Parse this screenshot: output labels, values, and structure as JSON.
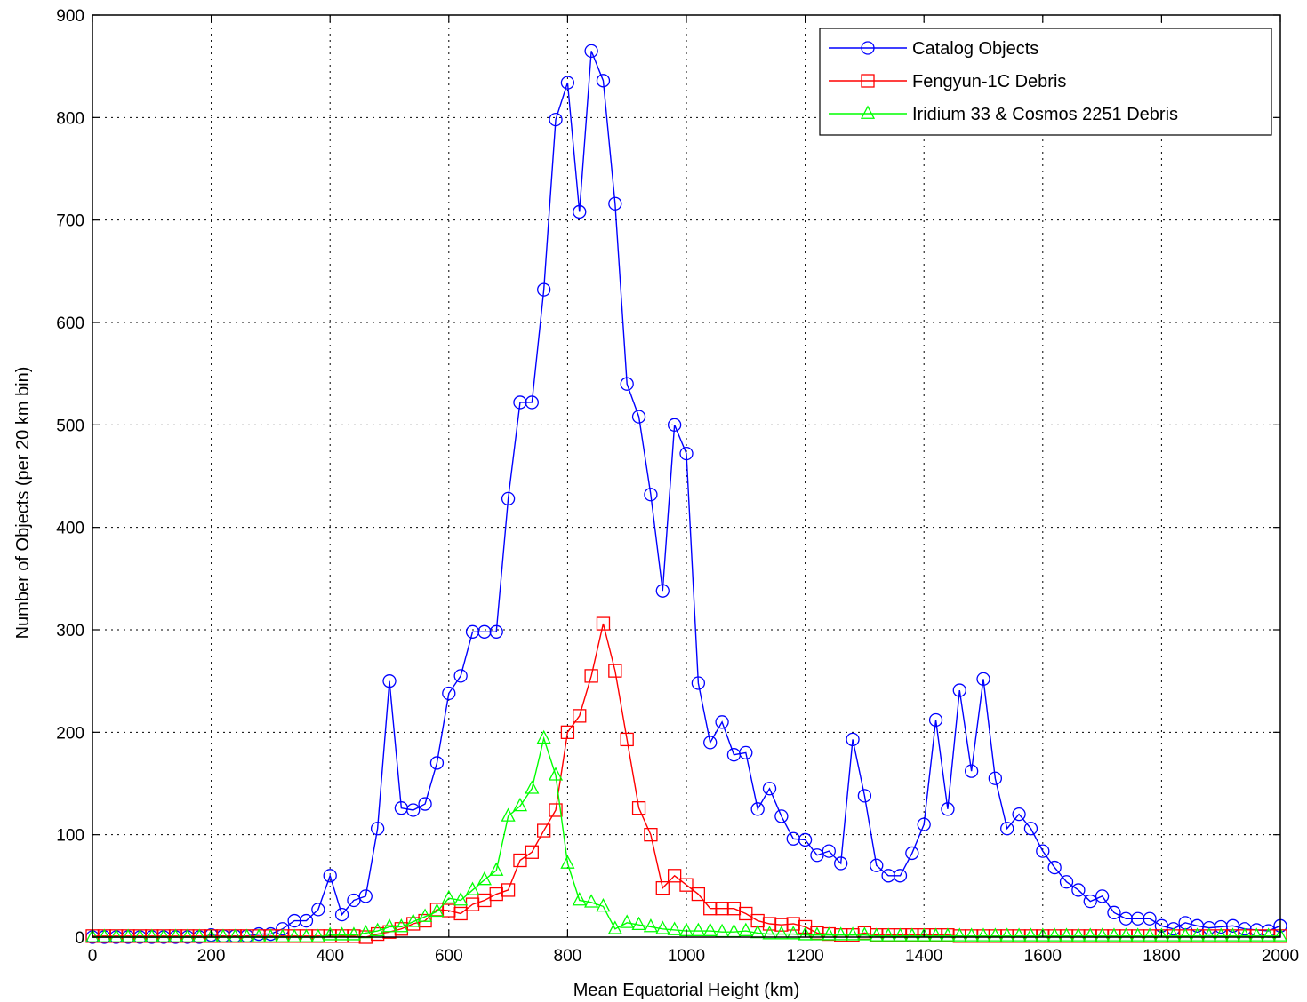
{
  "chart_data": {
    "type": "line",
    "title": "",
    "xlabel": "Mean Equatorial Height (km)",
    "ylabel": "Number of Objects (per 20 km bin)",
    "xlim": [
      0,
      2000
    ],
    "ylim": [
      0,
      900
    ],
    "xticks": [
      0,
      200,
      400,
      600,
      800,
      1000,
      1200,
      1400,
      1600,
      1800,
      2000
    ],
    "yticks": [
      0,
      100,
      200,
      300,
      400,
      500,
      600,
      700,
      800,
      900
    ],
    "grid": true,
    "legend_position": "top-right",
    "series": [
      {
        "name": "Catalog Objects",
        "color": "#0000ff",
        "marker": "circle",
        "x": [
          0,
          20,
          40,
          60,
          80,
          100,
          120,
          140,
          160,
          180,
          200,
          220,
          240,
          260,
          280,
          300,
          320,
          340,
          360,
          380,
          400,
          420,
          440,
          460,
          480,
          500,
          520,
          540,
          560,
          580,
          600,
          620,
          640,
          660,
          680,
          700,
          720,
          740,
          760,
          780,
          800,
          820,
          840,
          860,
          880,
          900,
          920,
          940,
          960,
          980,
          1000,
          1020,
          1040,
          1060,
          1080,
          1100,
          1120,
          1140,
          1160,
          1180,
          1200,
          1220,
          1240,
          1260,
          1280,
          1300,
          1320,
          1340,
          1360,
          1380,
          1400,
          1420,
          1440,
          1460,
          1480,
          1500,
          1520,
          1540,
          1560,
          1580,
          1600,
          1620,
          1640,
          1660,
          1680,
          1700,
          1720,
          1740,
          1760,
          1780,
          1800,
          1820,
          1840,
          1860,
          1880,
          1900,
          1920,
          1940,
          1960,
          1980,
          2000
        ],
        "y": [
          0,
          0,
          0,
          0,
          0,
          0,
          0,
          0,
          0,
          0,
          2,
          1,
          1,
          1,
          3,
          3,
          8,
          16,
          16,
          27,
          60,
          22,
          36,
          40,
          106,
          250,
          126,
          124,
          130,
          170,
          238,
          255,
          298,
          298,
          298,
          428,
          522,
          522,
          632,
          798,
          834,
          708,
          865,
          836,
          716,
          540,
          508,
          432,
          338,
          500,
          472,
          248,
          190,
          210,
          178,
          180,
          125,
          145,
          118,
          96,
          95,
          80,
          84,
          72,
          193,
          138,
          70,
          60,
          60,
          82,
          110,
          212,
          125,
          241,
          162,
          252,
          155,
          106,
          120,
          106,
          84,
          68,
          54,
          46,
          35,
          40,
          24,
          18,
          18,
          18,
          11,
          8,
          14,
          11,
          9,
          10,
          11,
          8,
          7,
          6,
          11
        ]
      },
      {
        "name": "Fengyun-1C Debris",
        "color": "#ff0000",
        "marker": "square",
        "x": [
          0,
          20,
          40,
          60,
          80,
          100,
          120,
          140,
          160,
          180,
          200,
          220,
          240,
          260,
          280,
          300,
          320,
          340,
          360,
          380,
          400,
          420,
          440,
          460,
          480,
          500,
          520,
          540,
          560,
          580,
          600,
          620,
          640,
          660,
          680,
          700,
          720,
          740,
          760,
          780,
          800,
          820,
          840,
          860,
          880,
          900,
          920,
          940,
          960,
          980,
          1000,
          1020,
          1040,
          1060,
          1080,
          1100,
          1120,
          1140,
          1160,
          1180,
          1200,
          1220,
          1240,
          1260,
          1280,
          1300,
          1320,
          1340,
          1360,
          1380,
          1400,
          1420,
          1440,
          1460,
          1480,
          1500,
          1520,
          1540,
          1560,
          1580,
          1600,
          1620,
          1640,
          1660,
          1680,
          1700,
          1720,
          1740,
          1760,
          1780,
          1800,
          1820,
          1840,
          1860,
          1880,
          1900,
          1920,
          1940,
          1960,
          1980,
          2000
        ],
        "y": [
          1,
          1,
          1,
          1,
          1,
          1,
          1,
          1,
          1,
          1,
          1,
          1,
          1,
          1,
          1,
          1,
          1,
          1,
          1,
          1,
          1,
          1,
          1,
          0,
          3,
          5,
          8,
          13,
          16,
          27,
          26,
          23,
          32,
          36,
          42,
          46,
          75,
          83,
          104,
          124,
          200,
          216,
          255,
          306,
          260,
          193,
          126,
          100,
          48,
          60,
          51,
          42,
          28,
          28,
          28,
          23,
          16,
          13,
          12,
          13,
          10,
          4,
          3,
          2,
          2,
          4,
          2,
          2,
          2,
          2,
          2,
          2,
          2,
          1,
          1,
          1,
          1,
          1,
          1,
          1,
          1,
          1,
          1,
          1,
          1,
          1,
          1,
          1,
          1,
          1,
          1,
          1,
          1,
          1,
          1,
          1,
          1,
          1,
          1,
          1,
          1
        ]
      },
      {
        "name": "Iridium 33 & Cosmos 2251 Debris",
        "color": "#00ff00",
        "marker": "triangle",
        "x": [
          0,
          20,
          40,
          60,
          80,
          100,
          120,
          140,
          160,
          180,
          200,
          220,
          240,
          260,
          280,
          300,
          320,
          340,
          360,
          380,
          400,
          420,
          440,
          460,
          480,
          500,
          520,
          540,
          560,
          580,
          600,
          620,
          640,
          660,
          680,
          700,
          720,
          740,
          760,
          780,
          800,
          820,
          840,
          860,
          880,
          900,
          920,
          940,
          960,
          980,
          1000,
          1020,
          1040,
          1060,
          1080,
          1100,
          1120,
          1140,
          1160,
          1180,
          1200,
          1220,
          1240,
          1260,
          1280,
          1300,
          1320,
          1340,
          1360,
          1380,
          1400,
          1420,
          1440,
          1460,
          1480,
          1500,
          1520,
          1540,
          1560,
          1580,
          1600,
          1620,
          1640,
          1660,
          1680,
          1700,
          1720,
          1740,
          1760,
          1780,
          1800,
          1820,
          1840,
          1860,
          1880,
          1900,
          1920,
          1940,
          1960,
          1980,
          2000
        ],
        "y": [
          0,
          0,
          0,
          0,
          0,
          0,
          0,
          0,
          0,
          0,
          0,
          0,
          0,
          0,
          0,
          0,
          0,
          0,
          0,
          0,
          2,
          2,
          2,
          4,
          6,
          10,
          10,
          15,
          20,
          25,
          38,
          36,
          46,
          56,
          65,
          118,
          128,
          145,
          194,
          158,
          72,
          36,
          34,
          30,
          8,
          14,
          12,
          10,
          8,
          7,
          6,
          6,
          6,
          5,
          5,
          6,
          4,
          3,
          3,
          3,
          2,
          2,
          2,
          2,
          2,
          2,
          1,
          1,
          1,
          1,
          1,
          1,
          1,
          1,
          1,
          1,
          1,
          1,
          1,
          1,
          1,
          1,
          1,
          1,
          1,
          1,
          1,
          1,
          1,
          1,
          1,
          1,
          1,
          1,
          1,
          1,
          1,
          1,
          1,
          1,
          1
        ]
      }
    ]
  }
}
